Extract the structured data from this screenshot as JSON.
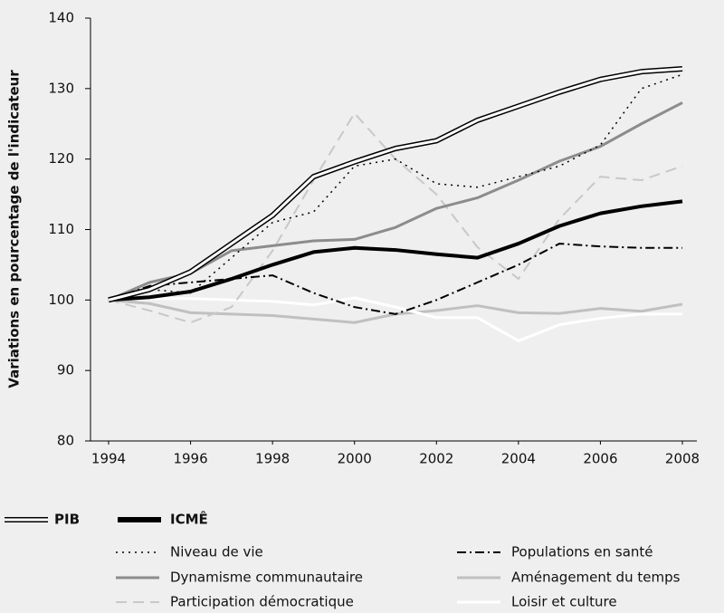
{
  "chart_data": {
    "type": "line",
    "y_label": "Variations en pourcentage de l'indicateur",
    "x": [
      1994,
      1995,
      1996,
      1997,
      1998,
      1999,
      2000,
      2001,
      2002,
      2003,
      2004,
      2005,
      2006,
      2007,
      2008
    ],
    "xlim": [
      1994,
      2008
    ],
    "xticks": [
      1994,
      1996,
      1998,
      2000,
      2002,
      2004,
      2006,
      2008
    ],
    "ylim": [
      80,
      140
    ],
    "yticks": [
      80,
      90,
      100,
      110,
      120,
      130,
      140
    ],
    "series": [
      {
        "name": "PIB",
        "color": "#ffffff",
        "outline": "#000000",
        "style": "double",
        "values": [
          100,
          101.5,
          104,
          108,
          112,
          117.5,
          119.6,
          121.5,
          122.6,
          125.5,
          127.5,
          129.5,
          131.3,
          132.4,
          132.8
        ]
      },
      {
        "name": "ICMÊ",
        "color": "#000000",
        "style": "thick",
        "values": [
          100,
          100.4,
          101.2,
          103,
          105,
          106.8,
          107.4,
          107.1,
          106.5,
          106,
          108,
          110.5,
          112.3,
          113.3,
          114
        ]
      },
      {
        "name": "Niveau de vie",
        "color": "#000000",
        "style": "dotted",
        "values": [
          100,
          101.5,
          101,
          106,
          111,
          112.5,
          119,
          120,
          116.5,
          116,
          117.5,
          119,
          122,
          130,
          132
        ]
      },
      {
        "name": "Populations en santé",
        "color": "#000000",
        "style": "dashdot",
        "values": [
          100,
          102,
          102.5,
          103,
          103.5,
          101,
          99,
          98,
          100,
          102.5,
          105,
          108,
          107.6,
          107.4,
          107.4
        ]
      },
      {
        "name": "Dynamisme communautaire",
        "color": "#8c8c8c",
        "style": "solid",
        "values": [
          100,
          102.5,
          103.8,
          107,
          107.7,
          108.4,
          108.6,
          110.3,
          113,
          114.5,
          117,
          119.7,
          121.8,
          125,
          128
        ]
      },
      {
        "name": "Aménagement du temps",
        "color": "#c0c0c0",
        "style": "solid",
        "values": [
          100,
          99.5,
          98.2,
          98,
          97.8,
          97.3,
          96.8,
          98,
          98.5,
          99.2,
          98.2,
          98.1,
          98.8,
          98.4,
          99.4
        ]
      },
      {
        "name": "Participation démocratique",
        "color": "#c8c8c8",
        "style": "dashed",
        "values": [
          100,
          98.5,
          96.8,
          99,
          107,
          117,
          126.5,
          120,
          115,
          107.5,
          103,
          111.5,
          117.5,
          117,
          119
        ]
      },
      {
        "name": "Loisir et culture",
        "color": "#ffffff",
        "style": "solid",
        "values": [
          100,
          100.2,
          100.2,
          100,
          99.8,
          99.3,
          100.3,
          99,
          97.5,
          97.5,
          94.2,
          96.5,
          97.4,
          98,
          98
        ]
      }
    ]
  }
}
